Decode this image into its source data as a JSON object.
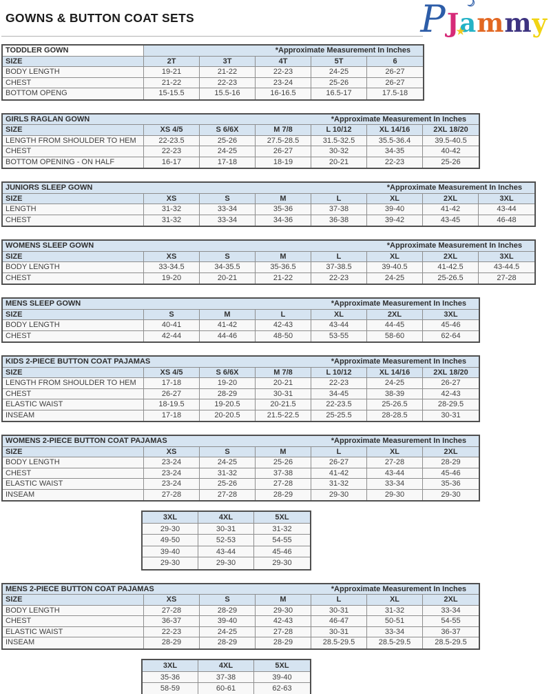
{
  "page": {
    "title": "GOWNS & BUTTON COAT SETS",
    "measurement_note": "*Approximate Measurement In Inches"
  },
  "logo": {
    "brand": "PJammy",
    "letters": [
      {
        "ch": "P",
        "color": "#2d5da8",
        "class": "lp",
        "name": "logo-letter-p"
      },
      {
        "ch": "★",
        "color": "#f4c81d",
        "class": "lstar",
        "name": "logo-star-icon"
      },
      {
        "ch": "☽",
        "color": "#2d5da8",
        "class": "lmoon",
        "name": "logo-moon-icon"
      },
      {
        "ch": "J",
        "color": "#d62a78",
        "class": "lj",
        "name": "logo-letter-j"
      },
      {
        "ch": "a",
        "color": "#23b2c6",
        "class": "la",
        "name": "logo-letter-a"
      },
      {
        "ch": "m",
        "color": "#e26722",
        "class": "lm1",
        "name": "logo-letter-m1"
      },
      {
        "ch": "m",
        "color": "#3d3380",
        "class": "lm2",
        "name": "logo-letter-m2"
      },
      {
        "ch": "y",
        "color": "#f1d414",
        "class": "ly",
        "name": "logo-letter-y"
      }
    ]
  },
  "colors": {
    "header_bg": "#d6e4f1",
    "row_bg": "#f8f8f8",
    "outer_border": "#4f4f4f",
    "inner_border": "#8d8d8d",
    "text": "#3d3d3d"
  },
  "size_label": "SIZE",
  "tables": [
    {
      "type": "main",
      "name": "TODDLER GOWN",
      "split_title": true,
      "sizes": [
        "2T",
        "3T",
        "4T",
        "5T",
        "6"
      ],
      "rows": [
        {
          "label": "BODY LENGTH",
          "values": [
            "19-21",
            "21-22",
            "22-23",
            "24-25",
            "26-27"
          ]
        },
        {
          "label": "CHEST",
          "values": [
            "21-22",
            "22-23",
            "23-24",
            "25-26",
            "26-27"
          ]
        },
        {
          "label": "BOTTOM OPENG",
          "values": [
            "15-15.5",
            "15.5-16",
            "16-16.5",
            "16.5-17",
            "17.5-18"
          ]
        }
      ]
    },
    {
      "type": "main",
      "name": "GIRLS RAGLAN GOWN",
      "split_title": false,
      "sizes": [
        "XS 4/5",
        "S 6/6X",
        "M 7/8",
        "L 10/12",
        "XL 14/16",
        "2XL 18/20"
      ],
      "rows": [
        {
          "label": "LENGTH FROM SHOULDER TO HEM",
          "values": [
            "22-23.5",
            "25-26",
            "27.5-28.5",
            "31.5-32.5",
            "35.5-36.4",
            "39.5-40.5"
          ]
        },
        {
          "label": "CHEST",
          "values": [
            "22-23",
            "24-25",
            "26-27",
            "30-32",
            "34-35",
            "40-42"
          ]
        },
        {
          "label": "BOTTOM OPENING - ON HALF",
          "values": [
            "16-17",
            "17-18",
            "18-19",
            "20-21",
            "22-23",
            "25-26"
          ]
        }
      ]
    },
    {
      "type": "main",
      "name": "JUNIORS SLEEP GOWN",
      "split_title": false,
      "sizes": [
        "XS",
        "S",
        "M",
        "L",
        "XL",
        "2XL",
        "3XL"
      ],
      "rows": [
        {
          "label": "LENGTH",
          "values": [
            "31-32",
            "33-34",
            "35-36",
            "37-38",
            "39-40",
            "41-42",
            "43-44"
          ]
        },
        {
          "label": "CHEST",
          "values": [
            "31-32",
            "33-34",
            "34-36",
            "36-38",
            "39-42",
            "43-45",
            "46-48"
          ]
        }
      ]
    },
    {
      "type": "main",
      "name": "WOMENS SLEEP GOWN",
      "split_title": false,
      "sizes": [
        "XS",
        "S",
        "M",
        "L",
        "XL",
        "2XL",
        "3XL"
      ],
      "rows": [
        {
          "label": "BODY LENGTH",
          "values": [
            "33-34.5",
            "34-35.5",
            "35-36.5",
            "37-38.5",
            "39-40.5",
            "41-42.5",
            "43-44.5"
          ]
        },
        {
          "label": "CHEST",
          "values": [
            "19-20",
            "20-21",
            "21-22",
            "22-23",
            "24-25",
            "25-26.5",
            "27-28"
          ]
        }
      ]
    },
    {
      "type": "main",
      "name": "MENS SLEEP GOWN",
      "split_title": false,
      "sizes": [
        "S",
        "M",
        "L",
        "XL",
        "2XL",
        "3XL"
      ],
      "rows": [
        {
          "label": "BODY LENGTH",
          "values": [
            "40-41",
            "41-42",
            "42-43",
            "43-44",
            "44-45",
            "45-46"
          ]
        },
        {
          "label": "CHEST",
          "values": [
            "42-44",
            "44-46",
            "48-50",
            "53-55",
            "58-60",
            "62-64"
          ]
        }
      ]
    },
    {
      "type": "main",
      "name": "KIDS 2-PIECE BUTTON COAT PAJAMAS",
      "split_title": false,
      "sizes": [
        "XS 4/5",
        "S 6/6X",
        "M 7/8",
        "L 10/12",
        "XL 14/16",
        "2XL 18/20"
      ],
      "rows": [
        {
          "label": "LENGTH FROM SHOULDER TO HEM",
          "values": [
            "17-18",
            "19-20",
            "20-21",
            "22-23",
            "24-25",
            "26-27"
          ]
        },
        {
          "label": "CHEST",
          "values": [
            "26-27",
            "28-29",
            "30-31",
            "34-45",
            "38-39",
            "42-43"
          ]
        },
        {
          "label": "ELASTIC WAIST",
          "values": [
            "18-19.5",
            "19-20.5",
            "20-21.5",
            "22-23.5",
            "25-26.5",
            "28-29.5"
          ]
        },
        {
          "label": "INSEAM",
          "values": [
            "17-18",
            "20-20.5",
            "21.5-22.5",
            "25-25.5",
            "28-28.5",
            "30-31"
          ]
        }
      ]
    },
    {
      "type": "main",
      "name": "WOMENS 2-PIECE BUTTON COAT PAJAMAS",
      "split_title": false,
      "sizes": [
        "XS",
        "S",
        "M",
        "L",
        "XL",
        "2XL"
      ],
      "rows": [
        {
          "label": "BODY LENGTH",
          "values": [
            "23-24",
            "24-25",
            "25-26",
            "26-27",
            "27-28",
            "28-29"
          ]
        },
        {
          "label": "CHEST",
          "values": [
            "23-24",
            "31-32",
            "37-38",
            "41-42",
            "43-44",
            "45-46"
          ]
        },
        {
          "label": "ELASTIC WAIST",
          "values": [
            "23-24",
            "25-26",
            "27-28",
            "31-32",
            "33-34",
            "35-36"
          ]
        },
        {
          "label": "INSEAM",
          "values": [
            "27-28",
            "27-28",
            "28-29",
            "29-30",
            "29-30",
            "29-30"
          ]
        }
      ]
    },
    {
      "type": "extension",
      "of": "WOMENS 2-PIECE BUTTON COAT PAJAMAS",
      "sizes": [
        "3XL",
        "4XL",
        "5XL"
      ],
      "rows": [
        [
          "29-30",
          "30-31",
          "31-32"
        ],
        [
          "49-50",
          "52-53",
          "54-55"
        ],
        [
          "39-40",
          "43-44",
          "45-46"
        ],
        [
          "29-30",
          "29-30",
          "29-30"
        ]
      ]
    },
    {
      "type": "main",
      "name": "MENS 2-PIECE BUTTON COAT PAJAMAS",
      "split_title": false,
      "sizes": [
        "XS",
        "S",
        "M",
        "L",
        "XL",
        "2XL"
      ],
      "rows": [
        {
          "label": "BODY LENGTH",
          "values": [
            "27-28",
            "28-29",
            "29-30",
            "30-31",
            "31-32",
            "33-34"
          ]
        },
        {
          "label": "CHEST",
          "values": [
            "36-37",
            "39-40",
            "42-43",
            "46-47",
            "50-51",
            "54-55"
          ]
        },
        {
          "label": "ELASTIC WAIST",
          "values": [
            "22-23",
            "24-25",
            "27-28",
            "30-31",
            "33-34",
            "36-37"
          ]
        },
        {
          "label": "INSEAM",
          "values": [
            "28-29",
            "28-29",
            "28-29",
            "28.5-29.5",
            "28.5-29.5",
            "28.5-29.5"
          ]
        }
      ]
    },
    {
      "type": "extension",
      "of": "MENS 2-PIECE BUTTON COAT PAJAMAS",
      "sizes": [
        "3XL",
        "4XL",
        "5XL"
      ],
      "rows": [
        [
          "35-36",
          "37-38",
          "39-40"
        ],
        [
          "58-59",
          "60-61",
          "62-63"
        ],
        [
          "39-40",
          "42-43",
          "44-45"
        ],
        [
          "28.5-29.5",
          "28.5-29.5",
          "28.5-29.5"
        ]
      ]
    }
  ]
}
